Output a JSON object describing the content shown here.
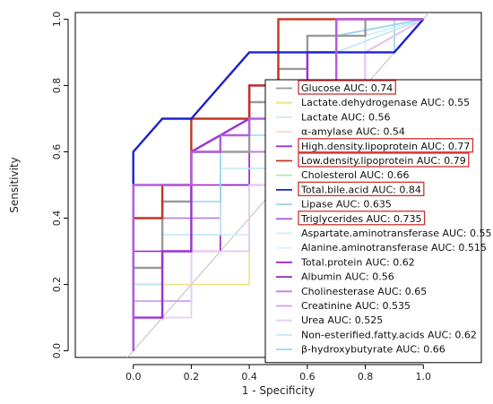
{
  "chart_data": {
    "type": "line",
    "xlabel": "1 - Specificity",
    "ylabel": "Sensitivity",
    "xlim": [
      -0.2,
      1.2
    ],
    "ylim": [
      -0.02,
      1.02
    ],
    "x_ticks": [
      "0.0",
      "0.2",
      "0.4",
      "0.6",
      "0.8",
      "1.0"
    ],
    "y_ticks": [
      "0.0",
      "0.2",
      "0.4",
      "0.6",
      "0.8",
      "1.0"
    ],
    "reference_line": {
      "x": [
        0,
        1
      ],
      "y": [
        0,
        1
      ],
      "color": "#bfbfbf"
    },
    "legend_position": "bottom-right",
    "series": [
      {
        "name": "Glucose AUC: 0.74",
        "color": "#9a9a9a",
        "highlight": true,
        "x": [
          0,
          0,
          0.1,
          0.1,
          0.2,
          0.2,
          0.4,
          0.4,
          0.5,
          0.5,
          0.6,
          0.6,
          0.8,
          0.8,
          1.0
        ],
        "y": [
          0,
          0.25,
          0.25,
          0.45,
          0.45,
          0.6,
          0.6,
          0.75,
          0.75,
          0.85,
          0.85,
          0.95,
          0.95,
          1.0,
          1.0
        ]
      },
      {
        "name": "Lactate.dehydrogenase AUC: 0.55",
        "color": "#f0e27a",
        "highlight": false,
        "x": [
          0,
          0,
          0.2,
          0.2,
          0.4,
          0.4,
          0.5,
          0.5,
          0.7,
          0.7,
          1.0
        ],
        "y": [
          0,
          0.2,
          0.2,
          0.2,
          0.2,
          0.5,
          0.5,
          0.7,
          0.7,
          0.95,
          1.0
        ]
      },
      {
        "name": "Lactate AUC: 0.56",
        "color": "#cfe8ef",
        "highlight": false,
        "x": [
          0,
          0,
          0.1,
          0.1,
          0.3,
          0.3,
          0.5,
          0.5,
          0.8,
          0.8,
          1.0
        ],
        "y": [
          0,
          0.1,
          0.1,
          0.3,
          0.3,
          0.5,
          0.5,
          0.7,
          0.7,
          0.9,
          1.0
        ]
      },
      {
        "name": "α-amylase AUC: 0.54",
        "color": "#f3dcc8",
        "highlight": false,
        "x": [
          0,
          0,
          0.2,
          0.2,
          0.4,
          0.4,
          0.6,
          0.6,
          0.8,
          0.8,
          1.0
        ],
        "y": [
          0,
          0.1,
          0.1,
          0.3,
          0.3,
          0.5,
          0.5,
          0.7,
          0.7,
          0.9,
          1.0
        ]
      },
      {
        "name": "High.density.lipoprotein AUC: 0.77",
        "color": "#9b30d9",
        "highlight": true,
        "x": [
          0,
          0,
          0.1,
          0.1,
          0.2,
          0.2,
          0.4,
          0.4,
          0.6,
          0.6,
          0.7,
          0.7,
          1.0
        ],
        "y": [
          0,
          0.1,
          0.1,
          0.3,
          0.3,
          0.6,
          0.7,
          0.8,
          0.8,
          0.9,
          0.9,
          1.0,
          1.0
        ]
      },
      {
        "name": "Low.density.lipoprotein AUC: 0.79",
        "color": "#c4341f",
        "highlight": true,
        "x": [
          0,
          0,
          0.1,
          0.1,
          0.2,
          0.2,
          0.4,
          0.4,
          0.5,
          0.5,
          0.6,
          1.0
        ],
        "y": [
          0,
          0.4,
          0.4,
          0.5,
          0.5,
          0.7,
          0.7,
          0.8,
          0.8,
          1.0,
          1.0,
          1.0
        ]
      },
      {
        "name": "Cholesterol AUC: 0.66",
        "color": "#b7e7b0",
        "highlight": false,
        "x": [
          0,
          0,
          0.1,
          0.1,
          0.3,
          0.3,
          0.5,
          0.5,
          0.7,
          0.7,
          1.0
        ],
        "y": [
          0,
          0.2,
          0.2,
          0.4,
          0.4,
          0.6,
          0.6,
          0.8,
          0.8,
          0.9,
          1.0
        ]
      },
      {
        "name": "Total.bile.acid AUC: 0.84",
        "color": "#1c23c9",
        "highlight": true,
        "x": [
          0,
          0,
          0.1,
          0.2,
          0.4,
          0.5,
          0.9,
          1.0
        ],
        "y": [
          0,
          0.6,
          0.7,
          0.7,
          0.9,
          0.9,
          0.9,
          1.0
        ]
      },
      {
        "name": "Lipase AUC: 0.635",
        "color": "#9fd4ea",
        "highlight": false,
        "x": [
          0,
          0,
          0.1,
          0.1,
          0.3,
          0.3,
          0.4,
          0.4,
          0.6,
          0.6,
          0.9,
          0.9,
          1.0
        ],
        "y": [
          0,
          0.2,
          0.2,
          0.4,
          0.4,
          0.5,
          0.5,
          0.7,
          0.7,
          0.9,
          0.9,
          1.0,
          1.0
        ]
      },
      {
        "name": "Triglycerides AUC: 0.735",
        "color": "#b45ee0",
        "highlight": true,
        "x": [
          0,
          0,
          0.2,
          0.2,
          0.3,
          0.3,
          0.4,
          0.4,
          0.7,
          0.7,
          1.0
        ],
        "y": [
          0,
          0.5,
          0.5,
          0.6,
          0.6,
          0.65,
          0.65,
          0.7,
          0.7,
          1.0,
          1.0
        ]
      },
      {
        "name": "Aspartate.aminotransferase AUC: 0.55",
        "color": "#cbeefa",
        "highlight": false,
        "x": [
          0,
          0,
          0.2,
          0.2,
          0.4,
          0.4,
          0.6,
          0.6,
          0.8,
          0.8,
          1.0
        ],
        "y": [
          0,
          0.15,
          0.15,
          0.35,
          0.35,
          0.55,
          0.55,
          0.75,
          0.75,
          0.95,
          1.0
        ]
      },
      {
        "name": "Alanine.aminotransferase AUC: 0.515",
        "color": "#d9f1fb",
        "highlight": false,
        "x": [
          0,
          0,
          0.2,
          0.2,
          0.4,
          0.4,
          0.6,
          0.6,
          0.8,
          0.8,
          1.0
        ],
        "y": [
          0,
          0.1,
          0.1,
          0.3,
          0.3,
          0.5,
          0.5,
          0.7,
          0.7,
          0.9,
          1.0
        ]
      },
      {
        "name": "Total.protein AUC: 0.62",
        "color": "#a21ccf",
        "highlight": false,
        "x": [
          0,
          0,
          0.2,
          0.2,
          0.4,
          0.4,
          0.6,
          0.6,
          0.8,
          0.8,
          1.0
        ],
        "y": [
          0,
          0.3,
          0.3,
          0.5,
          0.5,
          0.6,
          0.6,
          0.8,
          0.8,
          0.9,
          1.0
        ]
      },
      {
        "name": "Albumin AUC: 0.56",
        "color": "#9326c9",
        "highlight": false,
        "x": [
          0,
          0,
          0.1,
          0.1,
          0.3,
          0.3,
          0.5,
          0.5,
          0.8,
          0.8,
          1.0
        ],
        "y": [
          0,
          0.1,
          0.1,
          0.3,
          0.3,
          0.5,
          0.5,
          0.7,
          0.7,
          0.9,
          1.0
        ]
      },
      {
        "name": "Cholinesterase AUC: 0.65",
        "color": "#c07ae8",
        "highlight": false,
        "x": [
          0,
          0,
          0.1,
          0.1,
          0.3,
          0.3,
          0.5,
          0.5,
          0.7,
          0.7,
          1.0
        ],
        "y": [
          0,
          0.2,
          0.2,
          0.4,
          0.4,
          0.6,
          0.6,
          0.8,
          0.8,
          0.95,
          1.0
        ]
      },
      {
        "name": "Creatinine AUC: 0.535",
        "color": "#d39be8",
        "highlight": false,
        "x": [
          0,
          0,
          0.2,
          0.2,
          0.4,
          0.4,
          0.6,
          0.6,
          0.8,
          0.8,
          1.0
        ],
        "y": [
          0,
          0.15,
          0.15,
          0.3,
          0.3,
          0.5,
          0.5,
          0.7,
          0.7,
          0.9,
          1.0
        ]
      },
      {
        "name": "Urea AUC: 0.525",
        "color": "#e7cff2",
        "highlight": false,
        "x": [
          0,
          0,
          0.2,
          0.2,
          0.4,
          0.4,
          0.6,
          0.6,
          0.8,
          0.8,
          1.0
        ],
        "y": [
          0,
          0.1,
          0.1,
          0.3,
          0.3,
          0.5,
          0.5,
          0.7,
          0.7,
          0.9,
          1.0
        ]
      },
      {
        "name": "Non-esterified.fatty.acids AUC: 0.62",
        "color": "#bfe9f7",
        "highlight": false,
        "x": [
          0,
          0,
          0.1,
          0.1,
          0.3,
          0.3,
          0.5,
          0.5,
          0.7,
          0.7,
          1.0
        ],
        "y": [
          0,
          0.2,
          0.2,
          0.35,
          0.35,
          0.55,
          0.55,
          0.75,
          0.75,
          0.9,
          1.0
        ]
      },
      {
        "name": "β-hydroxybutyrate AUC: 0.66",
        "color": "#8fdcf2",
        "highlight": false,
        "x": [
          0,
          0,
          0.1,
          0.1,
          0.3,
          0.3,
          0.5,
          0.5,
          0.7,
          0.7,
          1.0
        ],
        "y": [
          0,
          0.25,
          0.25,
          0.45,
          0.45,
          0.65,
          0.65,
          0.8,
          0.8,
          0.95,
          1.0
        ]
      }
    ]
  }
}
